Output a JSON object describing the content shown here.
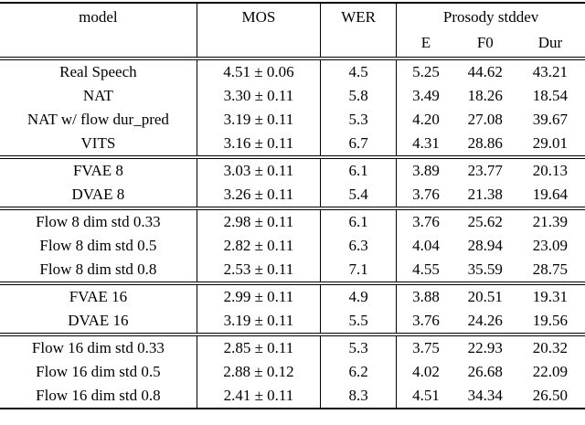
{
  "table": {
    "headers": {
      "model": "model",
      "mos": "MOS",
      "wer": "WER",
      "prosody_group": "Prosody stddev",
      "e": "E",
      "f0": "F0",
      "dur": "Dur"
    },
    "sections": [
      {
        "rows": [
          {
            "model": "Real Speech",
            "mos": "4.51 ± 0.06",
            "wer": "4.5",
            "e": "5.25",
            "f0": "44.62",
            "dur": "43.21"
          },
          {
            "model": "NAT",
            "mos": "3.30 ± 0.11",
            "wer": "5.8",
            "e": "3.49",
            "f0": "18.26",
            "dur": "18.54"
          },
          {
            "model": "NAT w/ flow dur_pred",
            "mos": "3.19 ± 0.11",
            "wer": "5.3",
            "e": "4.20",
            "f0": "27.08",
            "dur": "39.67"
          },
          {
            "model": "VITS",
            "mos": "3.16 ± 0.11",
            "wer": "6.7",
            "e": "4.31",
            "f0": "28.86",
            "dur": "29.01"
          }
        ]
      },
      {
        "rows": [
          {
            "model": "FVAE 8",
            "mos": "3.03 ± 0.11",
            "wer": "6.1",
            "e": "3.89",
            "f0": "23.77",
            "dur": "20.13"
          },
          {
            "model": "DVAE 8",
            "mos": "3.26 ± 0.11",
            "wer": "5.4",
            "e": "3.76",
            "f0": "21.38",
            "dur": "19.64"
          }
        ]
      },
      {
        "rows": [
          {
            "model": "Flow 8 dim std 0.33",
            "mos": "2.98 ± 0.11",
            "wer": "6.1",
            "e": "3.76",
            "f0": "25.62",
            "dur": "21.39"
          },
          {
            "model": "Flow 8 dim std 0.5",
            "mos": "2.82 ± 0.11",
            "wer": "6.3",
            "e": "4.04",
            "f0": "28.94",
            "dur": "23.09"
          },
          {
            "model": "Flow 8 dim std 0.8",
            "mos": "2.53 ± 0.11",
            "wer": "7.1",
            "e": "4.55",
            "f0": "35.59",
            "dur": "28.75"
          }
        ]
      },
      {
        "rows": [
          {
            "model": "FVAE 16",
            "mos": "2.99 ± 0.11",
            "wer": "4.9",
            "e": "3.88",
            "f0": "20.51",
            "dur": "19.31"
          },
          {
            "model": "DVAE 16",
            "mos": "3.19 ± 0.11",
            "wer": "5.5",
            "e": "3.76",
            "f0": "24.26",
            "dur": "19.56"
          }
        ]
      },
      {
        "rows": [
          {
            "model": "Flow 16 dim std 0.33",
            "mos": "2.85 ± 0.11",
            "wer": "5.3",
            "e": "3.75",
            "f0": "22.93",
            "dur": "20.32"
          },
          {
            "model": "Flow 16 dim std 0.5",
            "mos": "2.88 ± 0.12",
            "wer": "6.2",
            "e": "4.02",
            "f0": "26.68",
            "dur": "22.09"
          },
          {
            "model": "Flow 16 dim std 0.8",
            "mos": "2.41 ± 0.11",
            "wer": "8.3",
            "e": "4.51",
            "f0": "34.34",
            "dur": "26.50"
          }
        ]
      }
    ]
  }
}
